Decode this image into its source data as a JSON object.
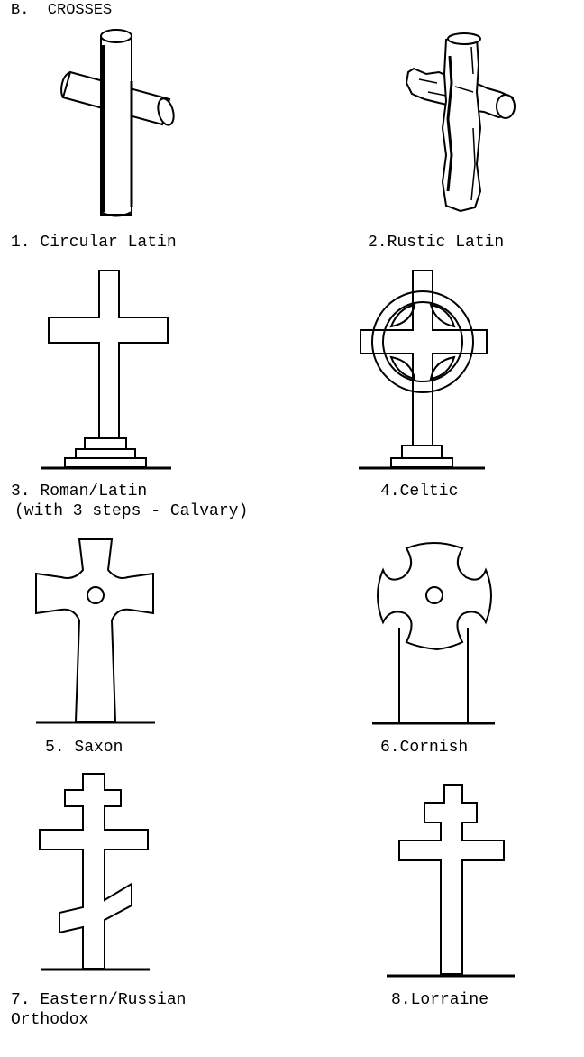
{
  "page": {
    "heading": "B.  CROSSES"
  },
  "crosses": [
    {
      "number": "1.",
      "name": "Circular Latin",
      "label": "1. Circular Latin",
      "icon": "circular-latin-cross-icon"
    },
    {
      "number": "2.",
      "name": "Rustic Latin",
      "label": "2.Rustic Latin",
      "icon": "rustic-latin-cross-icon"
    },
    {
      "number": "3.",
      "name": "Roman/Latin",
      "label": "3. Roman/Latin",
      "sublabel": "(with 3 steps - Calvary)",
      "icon": "roman-latin-cross-icon"
    },
    {
      "number": "4.",
      "name": "Celtic",
      "label": "4.Celtic",
      "icon": "celtic-cross-icon"
    },
    {
      "number": "5.",
      "name": "Saxon",
      "label": "5. Saxon",
      "icon": "saxon-cross-icon"
    },
    {
      "number": "6.",
      "name": "Cornish",
      "label": "6.Cornish",
      "icon": "cornish-cross-icon"
    },
    {
      "number": "7.",
      "name": "Eastern/Russian Orthodox",
      "label": "7. Eastern/Russian",
      "sublabel": "Orthodox",
      "icon": "eastern-orthodox-cross-icon"
    },
    {
      "number": "8.",
      "name": "Lorraine",
      "label": "8.Lorraine",
      "icon": "lorraine-cross-icon"
    }
  ]
}
